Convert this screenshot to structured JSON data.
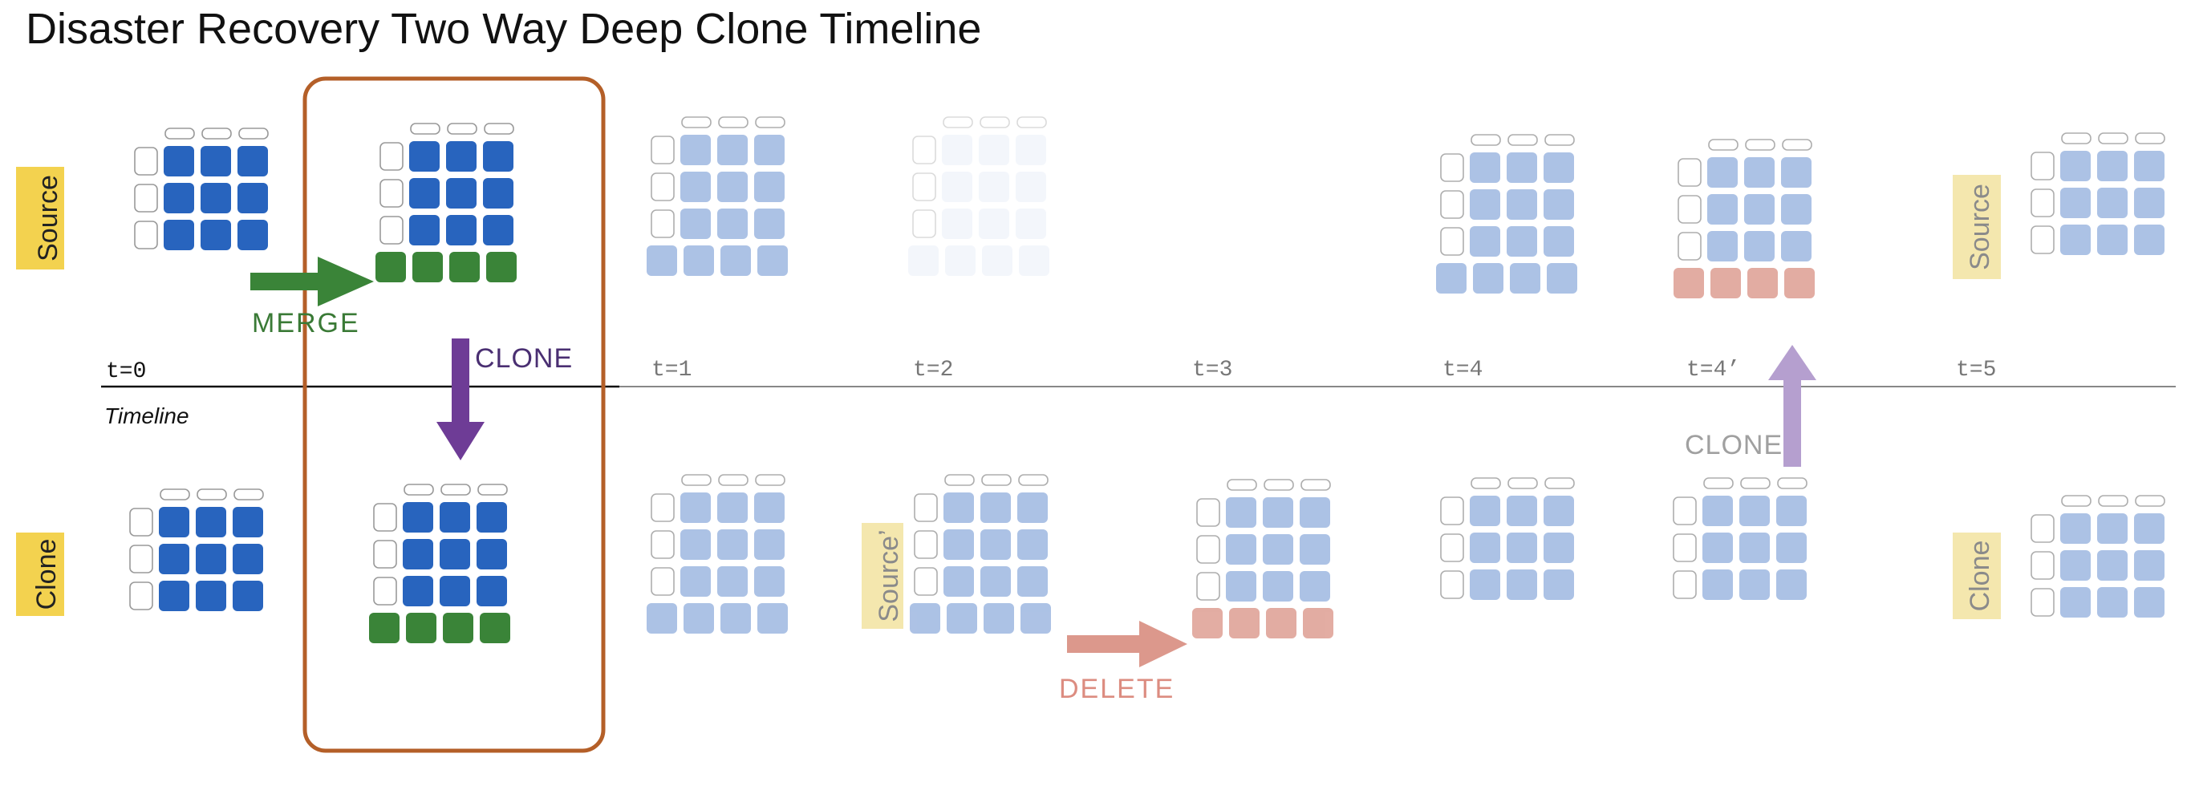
{
  "title": "Disaster Recovery Two Way Deep Clone Timeline",
  "timeline_label": "Timeline",
  "row_labels": [
    "Source",
    "Clone"
  ],
  "timepoints": [
    "t=0",
    "t=1",
    "t=2",
    "t=3",
    "t=4",
    "t=4’",
    "t=5"
  ],
  "operations": {
    "merge": "MERGE",
    "clone_down": "CLONE",
    "delete": "DELETE",
    "clone_up": "CLONE"
  },
  "side_labels": {
    "source_prime": "Source’",
    "source_t5": "Source",
    "clone_t5": "Clone"
  },
  "colors": {
    "dark_blue": "#2864be",
    "light_blue": "#98b3df",
    "faded_blue": "#dde6f4",
    "green": "#3a8438",
    "salmon": "#dc988c",
    "purple": "#6e3c96",
    "light_purple": "#b59fcf",
    "label_yellow": "#f3d24f",
    "label_yellow_faded": "#f4e7ae",
    "highlight_box": "#b45f28"
  }
}
